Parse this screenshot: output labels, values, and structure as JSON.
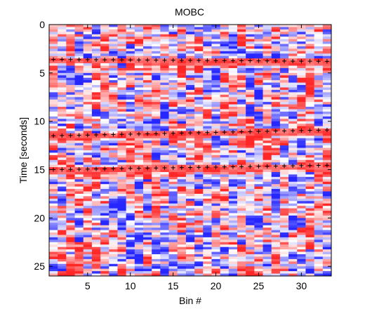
{
  "chart_data": {
    "type": "heatmap",
    "title": "MOBC",
    "xlabel": "Bin #",
    "ylabel": "Time [seconds]",
    "xlim": [
      0.5,
      33.5
    ],
    "ylim": [
      26,
      0
    ],
    "x_ticks": [
      5,
      10,
      15,
      20,
      25,
      30
    ],
    "y_ticks": [
      0,
      5,
      10,
      15,
      20,
      25
    ],
    "bins": 33,
    "time_step": 0.25,
    "colormap": {
      "negative": "#0000ff",
      "zero": "#ffffff",
      "positive": "#ff0000"
    },
    "marker_color": "#000000",
    "marker_series": [
      {
        "time_start": 3.6,
        "time_end": 3.8
      },
      {
        "time_start": 11.5,
        "time_end": 10.9
      },
      {
        "time_start": 15.0,
        "time_end": 14.55
      }
    ]
  }
}
